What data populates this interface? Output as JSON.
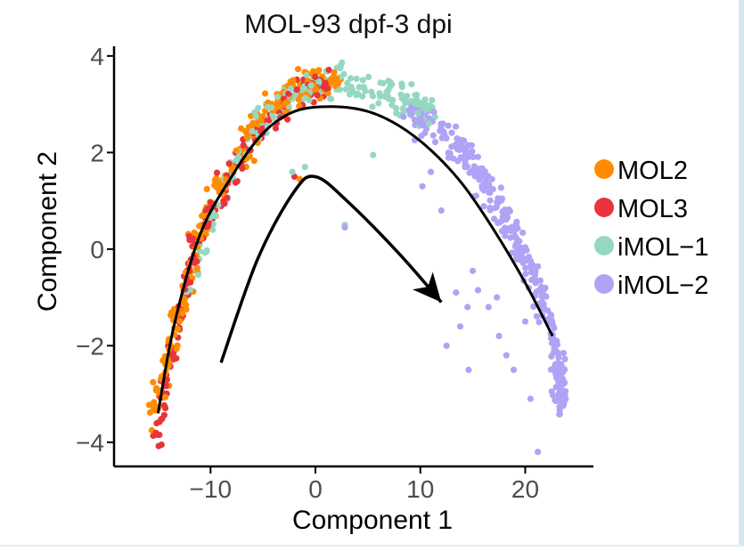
{
  "chart_data": {
    "type": "scatter",
    "title": "MOL-93 dpf-3 dpi",
    "xlabel": "Component 1",
    "ylabel": "Component 2",
    "xlim": [
      -19.2,
      26.5
    ],
    "ylim": [
      -4.5,
      4.2
    ],
    "xticks": [
      -10,
      0,
      10,
      20
    ],
    "xtick_labels": [
      "−10",
      "0",
      "10",
      "20"
    ],
    "yticks": [
      -4,
      -2,
      0,
      2,
      4
    ],
    "ytick_labels": [
      "−4",
      "−2",
      "0",
      "2",
      "4"
    ],
    "grid": false,
    "legend_position": "right",
    "series": [
      {
        "name": "MOL2",
        "color": "#ff8c00",
        "trajectory": [
          [
            -15.4,
            -3.5
          ],
          [
            -14.0,
            -2.2
          ],
          [
            -12.5,
            -1.0
          ],
          [
            -11.0,
            0.4
          ],
          [
            -9.0,
            1.4
          ],
          [
            -6.5,
            2.3
          ],
          [
            -4.0,
            3.0
          ],
          [
            -1.0,
            3.4
          ],
          [
            2.2,
            3.55
          ]
        ],
        "count": 260,
        "spread": 0.5
      },
      {
        "name": "MOL3",
        "color": "#e8343a",
        "trajectory": [
          [
            -15.2,
            -4.0
          ],
          [
            -14.2,
            -2.7
          ],
          [
            -13.0,
            -1.4
          ],
          [
            -11.5,
            0.0
          ],
          [
            -9.5,
            1.0
          ],
          [
            -7.0,
            1.9
          ],
          [
            -4.5,
            2.7
          ],
          [
            -1.5,
            3.2
          ],
          [
            1.5,
            3.45
          ]
        ],
        "count": 190,
        "spread": 0.45
      },
      {
        "name": "iMOL−1",
        "color": "#96d7c3",
        "trajectory": [
          [
            -12.5,
            -1.2
          ],
          [
            -9.0,
            1.2
          ],
          [
            -6.0,
            2.4
          ],
          [
            -3.0,
            3.05
          ],
          [
            0.0,
            3.4
          ],
          [
            3.0,
            3.45
          ],
          [
            6.0,
            3.3
          ],
          [
            9.0,
            3.0
          ],
          [
            11.5,
            2.7
          ]
        ],
        "count": 200,
        "spread": 0.5
      },
      {
        "name": "iMOL−2",
        "color": "#b0a3f5",
        "trajectory": [
          [
            9.0,
            2.9
          ],
          [
            12.0,
            2.45
          ],
          [
            14.5,
            1.85
          ],
          [
            17.0,
            1.05
          ],
          [
            19.0,
            0.2
          ],
          [
            20.8,
            -0.6
          ],
          [
            22.3,
            -1.5
          ],
          [
            23.2,
            -2.5
          ],
          [
            23.5,
            -3.3
          ]
        ],
        "count": 330,
        "spread": 0.55
      }
    ],
    "outliers": [
      {
        "series": "MOL3",
        "x": -2.0,
        "y": 1.5
      },
      {
        "series": "MOL2",
        "x": -1.5,
        "y": 1.45
      },
      {
        "series": "iMOL−1",
        "x": -2.2,
        "y": 1.6
      },
      {
        "series": "iMOL−1",
        "x": -1.0,
        "y": 1.7
      },
      {
        "series": "iMOL−1",
        "x": 2.8,
        "y": 0.5
      },
      {
        "series": "iMOL−1",
        "x": 5.5,
        "y": 1.95
      },
      {
        "series": "iMOL−2",
        "x": 2.8,
        "y": 0.45
      },
      {
        "series": "iMOL−2",
        "x": 10.2,
        "y": 1.3
      },
      {
        "series": "iMOL−2",
        "x": 11.0,
        "y": 1.6
      },
      {
        "series": "iMOL−2",
        "x": 13.4,
        "y": -0.9
      },
      {
        "series": "iMOL−2",
        "x": 14.5,
        "y": -1.2
      },
      {
        "series": "iMOL−2",
        "x": 15.0,
        "y": -0.45
      },
      {
        "series": "iMOL−2",
        "x": 15.5,
        "y": -0.85
      },
      {
        "series": "iMOL−2",
        "x": 16.5,
        "y": -1.2
      },
      {
        "series": "iMOL−2",
        "x": 14.6,
        "y": -2.5
      },
      {
        "series": "iMOL−2",
        "x": 12.5,
        "y": -2.0
      },
      {
        "series": "iMOL−2",
        "x": 13.8,
        "y": -1.6
      },
      {
        "series": "iMOL−2",
        "x": 17.5,
        "y": -1.8
      },
      {
        "series": "iMOL−2",
        "x": 18.2,
        "y": -2.2
      },
      {
        "series": "iMOL−2",
        "x": 18.9,
        "y": -2.5
      },
      {
        "series": "iMOL−2",
        "x": 17.3,
        "y": -1.0
      },
      {
        "series": "iMOL−2",
        "x": 20.5,
        "y": -3.1
      },
      {
        "series": "iMOL−2",
        "x": 21.2,
        "y": -4.2
      },
      {
        "series": "iMOL−2",
        "x": 20.0,
        "y": -1.5
      },
      {
        "series": "iMOL−2",
        "x": 12.0,
        "y": 0.8
      }
    ],
    "principal_curve": [
      [
        -15.0,
        -3.4
      ],
      [
        -13.5,
        -1.6
      ],
      [
        -11.0,
        0.3
      ],
      [
        -8.0,
        1.5
      ],
      [
        -5.0,
        2.4
      ],
      [
        -2.0,
        2.85
      ],
      [
        1.5,
        2.95
      ],
      [
        5.0,
        2.85
      ],
      [
        8.0,
        2.55
      ],
      [
        11.0,
        2.05
      ],
      [
        14.0,
        1.35
      ],
      [
        17.0,
        0.4
      ],
      [
        20.0,
        -0.7
      ],
      [
        22.6,
        -1.8
      ]
    ],
    "annotation_arrow": [
      [
        -9.0,
        -2.35
      ],
      [
        -5.5,
        -0.2
      ],
      [
        -2.0,
        1.2
      ],
      [
        0.0,
        1.5
      ],
      [
        3.0,
        1.0
      ],
      [
        8.0,
        -0.1
      ],
      [
        12.0,
        -1.1
      ]
    ]
  }
}
